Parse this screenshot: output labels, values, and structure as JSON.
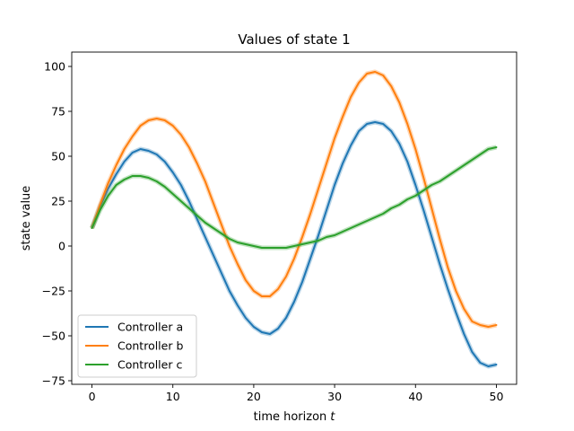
{
  "chart_data": {
    "type": "line",
    "title": "Values of state 1",
    "xlabel": "time horizon",
    "xlabel_italic": "t",
    "ylabel": "state value",
    "xlim": [
      -2.5,
      52.5
    ],
    "ylim": [
      -77,
      108
    ],
    "xticks": [
      0,
      10,
      20,
      30,
      40,
      50
    ],
    "yticks": [
      -75,
      -50,
      -25,
      0,
      25,
      50,
      75,
      100
    ],
    "grid": false,
    "legend_position": "lower-left",
    "x": [
      0,
      1,
      2,
      3,
      4,
      5,
      6,
      7,
      8,
      9,
      10,
      11,
      12,
      13,
      14,
      15,
      16,
      17,
      18,
      19,
      20,
      21,
      22,
      23,
      24,
      25,
      26,
      27,
      28,
      29,
      30,
      31,
      32,
      33,
      34,
      35,
      36,
      37,
      38,
      39,
      40,
      41,
      42,
      43,
      44,
      45,
      46,
      47,
      48,
      49,
      50
    ],
    "series": [
      {
        "name": "Controller a",
        "color": "#1f77b4",
        "values": [
          10,
          22,
          32,
          40,
          47,
          52,
          54,
          53,
          51,
          47,
          41,
          34,
          25,
          15,
          5,
          -5,
          -15,
          -25,
          -33,
          -40,
          -45,
          -48,
          -49,
          -46,
          -40,
          -31,
          -20,
          -7,
          6,
          20,
          34,
          46,
          56,
          64,
          68,
          69,
          68,
          64,
          57,
          47,
          34,
          20,
          5,
          -10,
          -24,
          -37,
          -49,
          -59,
          -65,
          -67,
          -66
        ]
      },
      {
        "name": "Controller b",
        "color": "#ff7f0e",
        "values": [
          10,
          23,
          35,
          45,
          54,
          61,
          67,
          70,
          71,
          70,
          67,
          62,
          55,
          46,
          36,
          24,
          12,
          0,
          -10,
          -19,
          -25,
          -28,
          -28,
          -24,
          -17,
          -7,
          5,
          18,
          32,
          46,
          60,
          72,
          83,
          91,
          96,
          97,
          95,
          89,
          80,
          68,
          54,
          38,
          21,
          4,
          -12,
          -25,
          -35,
          -42,
          -44,
          -45,
          -44
        ]
      },
      {
        "name": "Controller c",
        "color": "#2ca02c",
        "values": [
          10,
          20,
          28,
          34,
          37,
          39,
          39,
          38,
          36,
          33,
          29,
          25,
          21,
          17,
          13,
          10,
          7,
          4,
          2,
          1,
          0,
          -1,
          -1,
          -1,
          -1,
          0,
          1,
          2,
          3,
          5,
          6,
          8,
          10,
          12,
          14,
          16,
          18,
          21,
          23,
          26,
          28,
          31,
          34,
          36,
          39,
          42,
          45,
          48,
          51,
          54,
          55
        ]
      }
    ]
  }
}
